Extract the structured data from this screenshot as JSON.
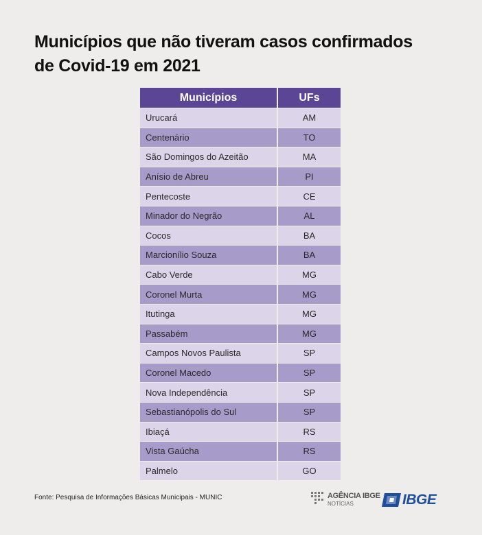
{
  "title": {
    "line1": "Municípios que não tiveram casos confirmados",
    "line2": "de Covid-19 em 2021"
  },
  "table": {
    "headers": {
      "municipio": "Municípios",
      "uf": "UFs"
    },
    "rows": [
      {
        "municipio": "Urucará",
        "uf": "AM"
      },
      {
        "municipio": "Centenário",
        "uf": "TO"
      },
      {
        "municipio": "São Domingos do Azeitão",
        "uf": "MA"
      },
      {
        "municipio": "Anísio de Abreu",
        "uf": "PI"
      },
      {
        "municipio": "Pentecoste",
        "uf": "CE"
      },
      {
        "municipio": "Minador do Negrão",
        "uf": "AL"
      },
      {
        "municipio": "Cocos",
        "uf": "BA"
      },
      {
        "municipio": "Marcionílio Souza",
        "uf": "BA"
      },
      {
        "municipio": "Cabo Verde",
        "uf": "MG"
      },
      {
        "municipio": "Coronel Murta",
        "uf": "MG"
      },
      {
        "municipio": "Itutinga",
        "uf": "MG"
      },
      {
        "municipio": "Passabém",
        "uf": "MG"
      },
      {
        "municipio": "Campos Novos Paulista",
        "uf": "SP"
      },
      {
        "municipio": "Coronel Macedo",
        "uf": "SP"
      },
      {
        "municipio": "Nova Independência",
        "uf": "SP"
      },
      {
        "municipio": "Sebastianópolis do Sul",
        "uf": "SP"
      },
      {
        "municipio": "Ibiaçá",
        "uf": "RS"
      },
      {
        "municipio": "Vista Gaúcha",
        "uf": "RS"
      },
      {
        "municipio": "Palmelo",
        "uf": "GO"
      }
    ]
  },
  "source": "Fonte: Pesquisa de Informações Básicas Municipais - MUNIC",
  "logos": {
    "agencia_name": "AGÊNCIA IBGE",
    "agencia_sub": "NOTÍCIAS",
    "ibge": "IBGE"
  },
  "colors": {
    "header": "#5b4696",
    "row_light": "#dcd5ea",
    "row_dark": "#a79bca",
    "ibge_blue": "#1f4f9c"
  }
}
